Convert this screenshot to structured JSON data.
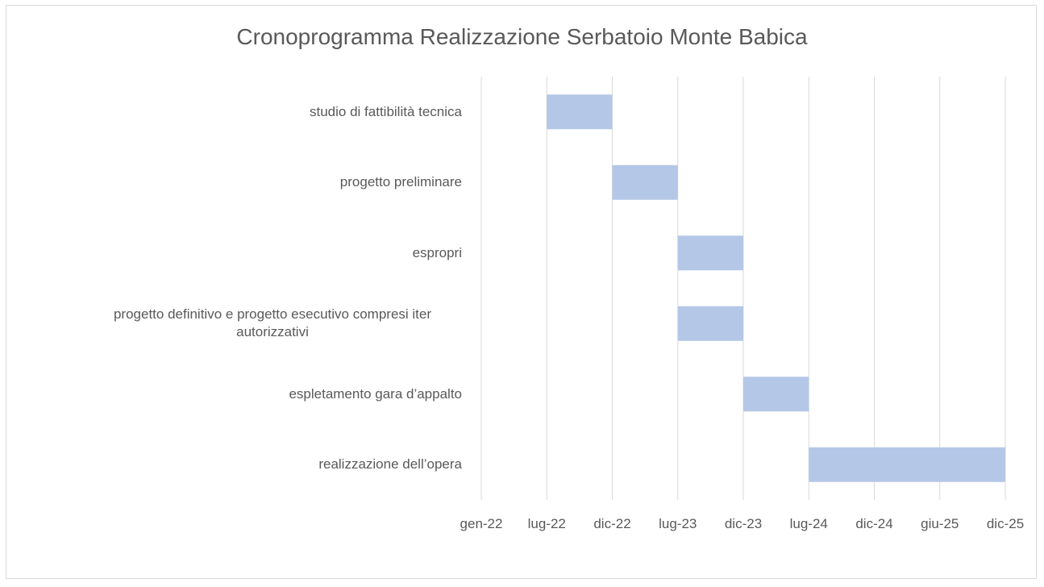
{
  "chart_data": {
    "type": "gantt",
    "title": "Cronoprogramma Realizzazione Serbatoio Monte Babica",
    "categories": [
      "studio di fattibilità tecnica",
      "progetto preliminare",
      "espropri",
      "progetto definitivo e progetto esecutivo compresi iter autorizzativi",
      "espletamento gara d’appalto",
      "realizzazione dell’opera"
    ],
    "start": [
      "2022-07",
      "2022-12",
      "2023-07",
      "2023-07",
      "2023-12",
      "2024-07"
    ],
    "end": [
      "2022-12",
      "2023-07",
      "2023-12",
      "2023-12",
      "2024-07",
      "2025-12"
    ],
    "color": "#b4c7e7",
    "xlim": [
      "2022-01",
      "2025-12"
    ],
    "xticks": [
      {
        "value": "2022-01",
        "label": "gen-22"
      },
      {
        "value": "2022-07",
        "label": "lug-22"
      },
      {
        "value": "2022-12",
        "label": "dic-22"
      },
      {
        "value": "2023-07",
        "label": "lug-23"
      },
      {
        "value": "2023-12",
        "label": "dic-23"
      },
      {
        "value": "2024-07",
        "label": "lug-24"
      },
      {
        "value": "2024-12",
        "label": "dic-24"
      },
      {
        "value": "2025-06",
        "label": "giu-25"
      },
      {
        "value": "2025-12",
        "label": "dic-25"
      }
    ],
    "grid": true
  }
}
